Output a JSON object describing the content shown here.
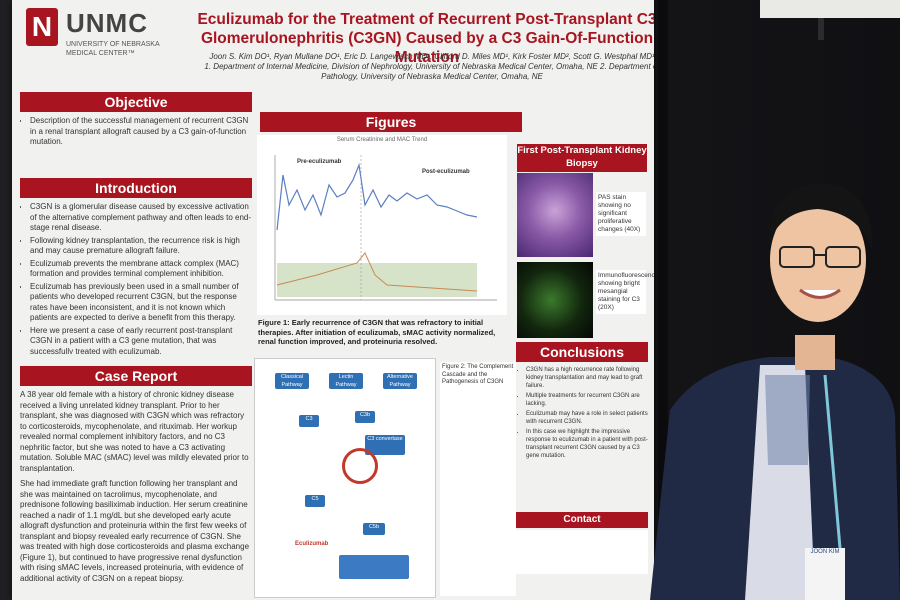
{
  "poster": {
    "logo": {
      "letter": "N",
      "name": "UNMC",
      "sub": "UNIVERSITY OF NEBRASKA\nMEDICAL CENTER™"
    },
    "title": "Eculizumab for the Treatment of Recurrent Post-Transplant C3 Glomerulonephritis (C3GN) Caused by a C3 Gain-Of-Function Mutation",
    "authors": "Joon S. Kim DO¹, Ryan Mullane DO¹, Eric D. Langewisch MD¹, Clifford D. Miles MD¹, Kirk Foster MD², Scott G. Westphal MD¹",
    "affiliations": "1. Department of Internal Medicine, Division of Nephrology, University of Nebraska Medical Center, Omaha, NE   2. Department of Pathology, University of Nebraska Medical Center, Omaha, NE",
    "sections": {
      "objective": {
        "heading": "Objective",
        "bullets": [
          "Description of the successful management of recurrent C3GN in a renal transplant allograft caused by a C3 gain-of-function mutation."
        ]
      },
      "introduction": {
        "heading": "Introduction",
        "bullets": [
          "C3GN is a glomerular disease caused by excessive activation of the alternative complement pathway and often leads to end-stage renal disease.",
          "Following kidney transplantation, the recurrence risk is high and may cause premature allograft failure.",
          "Eculizumab prevents the membrane attack complex (MAC) formation and provides terminal complement inhibition.",
          "Eculizumab has previously been used in a small number of patients who developed recurrent C3GN, but the response rates have been inconsistent, and it is not known which patients are expected to derive a benefit from this therapy.",
          "Here we present a case of early recurrent post-transplant C3GN in a patient with a C3 gene mutation, that was successfully treated with eculizumab."
        ]
      },
      "case_report": {
        "heading": "Case Report",
        "paragraphs": [
          "A 38 year old female with a history of chronic kidney disease received a living unrelated kidney transplant. Prior to her transplant, she was diagnosed with C3GN which was refractory to corticosteroids, mycophenolate, and rituximab. Her workup revealed normal complement inhibitory factors, and no C3 nephritic factor, but she was noted to have a C3 activating mutation. Soluble MAC (sMAC) level was mildly elevated prior to transplantation.",
          "She had immediate graft function following her transplant and she was maintained on tacrolimus, mycophenolate, and prednisone following basiliximab induction. Her serum creatinine reached a nadir of 1.1 mg/dL but she developed early acute allograft dysfunction and proteinuria within the first few weeks of transplant and biopsy revealed early recurrence of C3GN. She was treated with high dose corticosteroids and plasma exchange (Figure 1), but continued to have progressive renal dysfunction with rising sMAC levels, increased proteinuria, with evidence of additional activity of C3GN on a repeat biopsy."
        ]
      },
      "figures": {
        "heading": "Figures"
      },
      "biopsy": {
        "heading": "First Post-Transplant Kidney Biopsy"
      },
      "conclusions": {
        "heading": "Conclusions",
        "bullets": [
          "C3GN has a high recurrence rate following kidney transplantation and may lead to graft failure.",
          "Multiple treatments for recurrent C3GN are lacking.",
          "Eculizumab may have a role in select patients with recurrent C3GN.",
          "In this case we highlight the impressive response to eculizumab in a patient with post-transplant recurrent C3GN caused by a C3 gene mutation."
        ]
      },
      "contact": {
        "heading": "Contact"
      }
    },
    "figure1": {
      "chart_title": "Serum Creatinine and MAC Trend",
      "label_pre": "Pre-eculizumab",
      "label_post": "Post-eculizumab",
      "caption": "Figure 1: Early recurrence of C3GN that was refractory to initial therapies. After initiation of eculizumab, sMAC activity normalized, renal function improved, and proteinuria resolved."
    },
    "biopsy_notes": {
      "pas": "PAS stain showing no significant proliferative changes (40X)",
      "if": "Immunofluorescence showing bright mesangial staining for C3 (20X)"
    },
    "figure2": {
      "boxes": [
        "Classical Pathway",
        "Lectin Pathway",
        "Alternative Pathway",
        "C3",
        "C3b",
        "C3 convertase",
        "C5",
        "C5b",
        "Eculizumab"
      ],
      "caption": "Figure 2: The Complement Cascade and the Pathogenesis of C3GN"
    }
  },
  "person": {
    "badge": "JOON KIM"
  }
}
